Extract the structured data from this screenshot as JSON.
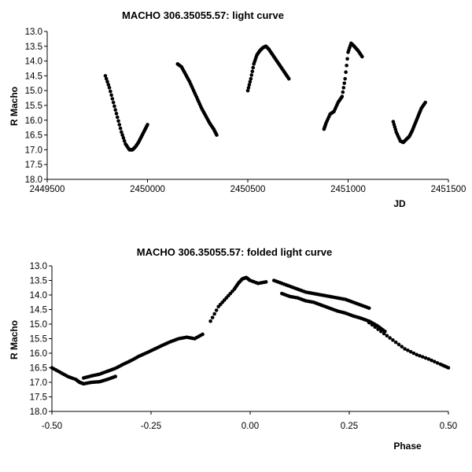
{
  "colors": {
    "marker": "#000000",
    "axis": "#000000",
    "background": "#ffffff"
  },
  "chart_data": [
    {
      "type": "scatter",
      "title": "MACHO 306.35055.57: light curve",
      "xlabel": "JD",
      "ylabel": "R Macho",
      "xlim": [
        2449500,
        2451500
      ],
      "ylim": [
        13.0,
        18.0
      ],
      "y_inverted": true,
      "grid": false,
      "legend": "none",
      "xticks": [
        "2449500",
        "2450000",
        "2450500",
        "2451000",
        "2451500"
      ],
      "yticks": [
        "13.0",
        "13.5",
        "14.0",
        "14.5",
        "15.0",
        "15.5",
        "16.0",
        "16.5",
        "17.0",
        "17.5",
        "18.0"
      ],
      "segments": [
        {
          "x": [
            2449790,
            2449810,
            2449830,
            2449850,
            2449870,
            2449890,
            2449910,
            2449925,
            2449940,
            2449955,
            2449970,
            2449985,
            2450000
          ],
          "y": [
            14.5,
            14.9,
            15.4,
            15.9,
            16.4,
            16.8,
            17.0,
            17.0,
            16.9,
            16.75,
            16.55,
            16.35,
            16.15
          ]
        },
        {
          "x": [
            2450150,
            2450170,
            2450190,
            2450210,
            2450230,
            2450250,
            2450270,
            2450290,
            2450310,
            2450330,
            2450345
          ],
          "y": [
            14.1,
            14.2,
            14.45,
            14.7,
            15.0,
            15.3,
            15.6,
            15.85,
            16.1,
            16.3,
            16.5
          ]
        },
        {
          "x": [
            2450500,
            2450515,
            2450530,
            2450545,
            2450560,
            2450575,
            2450590,
            2450605,
            2450625,
            2450645,
            2450665,
            2450685,
            2450705
          ],
          "y": [
            15.0,
            14.6,
            14.1,
            13.8,
            13.65,
            13.55,
            13.5,
            13.6,
            13.8,
            14.0,
            14.2,
            14.4,
            14.6
          ]
        },
        {
          "x": [
            2450880,
            2450890,
            2450910,
            2450930,
            2450950,
            2450970,
            2450985,
            2451000,
            2451015,
            2451030,
            2451050,
            2451070
          ],
          "y": [
            16.3,
            16.1,
            15.8,
            15.7,
            15.4,
            15.2,
            14.6,
            13.7,
            13.4,
            13.5,
            13.65,
            13.85
          ]
        },
        {
          "x": [
            2451225,
            2451240,
            2451260,
            2451275,
            2451290,
            2451305,
            2451320,
            2451335,
            2451350,
            2451365,
            2451385
          ],
          "y": [
            16.05,
            16.4,
            16.7,
            16.75,
            16.65,
            16.55,
            16.35,
            16.1,
            15.85,
            15.6,
            15.4
          ]
        }
      ]
    },
    {
      "type": "scatter",
      "title": "MACHO 306.35055.57: folded light curve",
      "xlabel": "Phase",
      "ylabel": "R Macho",
      "xlim": [
        -0.5,
        0.5
      ],
      "ylim": [
        13.0,
        18.0
      ],
      "y_inverted": true,
      "grid": false,
      "legend": "none",
      "xticks": [
        "-0.50",
        "-0.25",
        "0.00",
        "0.25",
        "0.50"
      ],
      "yticks": [
        "13.0",
        "13.5",
        "14.0",
        "14.5",
        "15.0",
        "15.5",
        "16.0",
        "16.5",
        "17.0",
        "17.5",
        "18.0"
      ],
      "segments": [
        {
          "x": [
            -0.5,
            -0.48,
            -0.46,
            -0.44,
            -0.43,
            -0.42,
            -0.4,
            -0.38,
            -0.36,
            -0.34
          ],
          "y": [
            16.5,
            16.65,
            16.8,
            16.9,
            17.0,
            17.05,
            17.0,
            16.98,
            16.9,
            16.8
          ]
        },
        {
          "x": [
            -0.42,
            -0.4,
            -0.38,
            -0.36,
            -0.34,
            -0.32,
            -0.3,
            -0.28,
            -0.26,
            -0.24,
            -0.22,
            -0.2,
            -0.18,
            -0.16,
            -0.14,
            -0.12
          ],
          "y": [
            16.85,
            16.78,
            16.72,
            16.62,
            16.52,
            16.38,
            16.25,
            16.1,
            15.98,
            15.85,
            15.72,
            15.6,
            15.5,
            15.45,
            15.5,
            15.35
          ]
        },
        {
          "x": [
            -0.1,
            -0.08,
            -0.06,
            -0.04,
            -0.03,
            -0.02,
            -0.01,
            0.0,
            0.02,
            0.04
          ],
          "y": [
            14.9,
            14.4,
            14.1,
            13.8,
            13.6,
            13.45,
            13.4,
            13.5,
            13.6,
            13.55
          ]
        },
        {
          "x": [
            0.06,
            0.08,
            0.1,
            0.12,
            0.14,
            0.16,
            0.18,
            0.2,
            0.22,
            0.24,
            0.26,
            0.28,
            0.3
          ],
          "y": [
            13.5,
            13.6,
            13.7,
            13.8,
            13.9,
            13.95,
            14.0,
            14.05,
            14.1,
            14.15,
            14.25,
            14.35,
            14.45
          ]
        },
        {
          "x": [
            0.08,
            0.1,
            0.12,
            0.14,
            0.16,
            0.18,
            0.2,
            0.22,
            0.24,
            0.26,
            0.28,
            0.3,
            0.32,
            0.34
          ],
          "y": [
            13.95,
            14.05,
            14.1,
            14.2,
            14.25,
            14.35,
            14.45,
            14.55,
            14.62,
            14.72,
            14.8,
            14.9,
            15.05,
            15.25
          ]
        },
        {
          "x": [
            0.3,
            0.33,
            0.36,
            0.39,
            0.42,
            0.45,
            0.48,
            0.5
          ],
          "y": [
            14.95,
            15.25,
            15.55,
            15.85,
            16.05,
            16.2,
            16.38,
            16.5
          ]
        }
      ]
    }
  ]
}
